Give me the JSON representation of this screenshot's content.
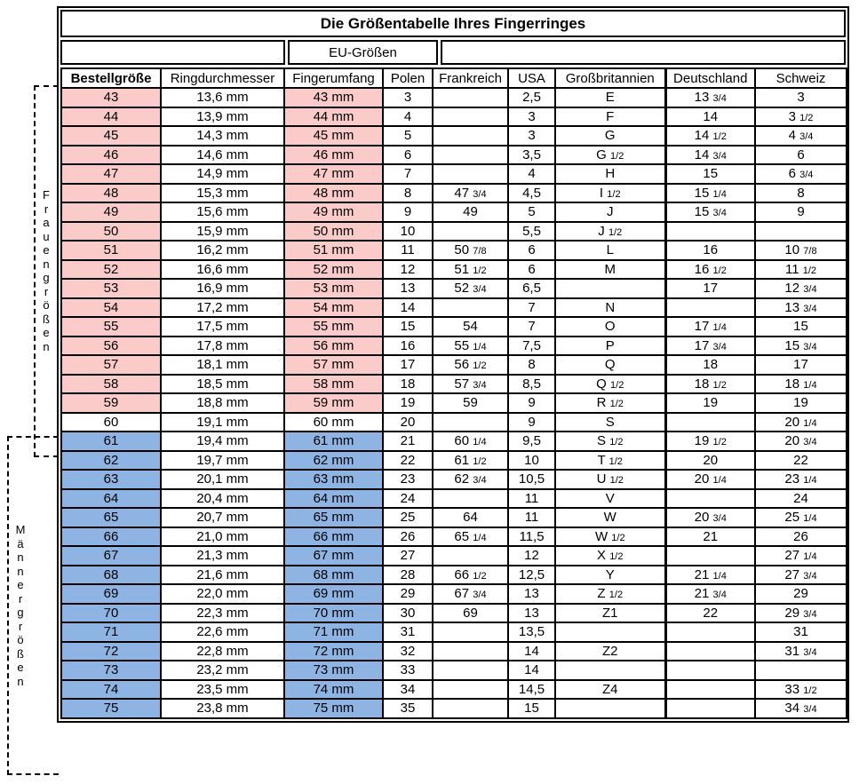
{
  "title": "Die Größentabelle Ihres Fingerringes",
  "header_group": {
    "eu_label": "EU-Größen"
  },
  "columns": [
    "Bestellgröße",
    "Ringdurchmesser",
    "Fingerumfang",
    "Polen",
    "Frankreich",
    "USA",
    "Großbritannien",
    "Deutschland",
    "Schweiz"
  ],
  "side_labels": {
    "women": "Frauengrößen",
    "men": "Männergrößen"
  },
  "colors": {
    "women_highlight": "#facbc8",
    "men_highlight": "#8db4e2",
    "border": "#000000"
  },
  "rows": [
    {
      "group": "women",
      "cells": [
        "43",
        "13,6 mm",
        "43 mm",
        "3",
        "",
        "2,5",
        "E",
        "13 3/4",
        "3"
      ]
    },
    {
      "group": "women",
      "cells": [
        "44",
        "13,9 mm",
        "44 mm",
        "4",
        "",
        "3",
        "F",
        "14",
        "3 1/2"
      ]
    },
    {
      "group": "women",
      "cells": [
        "45",
        "14,3 mm",
        "45 mm",
        "5",
        "",
        "3",
        "G",
        "14 1/2",
        "4 3/4"
      ]
    },
    {
      "group": "women",
      "cells": [
        "46",
        "14,6 mm",
        "46 mm",
        "6",
        "",
        "3,5",
        "G 1/2",
        "14 3/4",
        "6"
      ]
    },
    {
      "group": "women",
      "cells": [
        "47",
        "14,9 mm",
        "47 mm",
        "7",
        "",
        "4",
        "H",
        "15",
        "6 3/4"
      ]
    },
    {
      "group": "women",
      "cells": [
        "48",
        "15,3 mm",
        "48 mm",
        "8",
        "47 3/4",
        "4,5",
        "I 1/2",
        "15 1/4",
        "8"
      ]
    },
    {
      "group": "women",
      "cells": [
        "49",
        "15,6 mm",
        "49 mm",
        "9",
        "49",
        "5",
        "J",
        "15 3/4",
        "9"
      ]
    },
    {
      "group": "women",
      "cells": [
        "50",
        "15,9 mm",
        "50 mm",
        "10",
        "",
        "5,5",
        "J 1/2",
        "",
        ""
      ]
    },
    {
      "group": "women",
      "cells": [
        "51",
        "16,2 mm",
        "51 mm",
        "11",
        "50 7/8",
        "6",
        "L",
        "16",
        "10 7/8"
      ]
    },
    {
      "group": "women",
      "cells": [
        "52",
        "16,6 mm",
        "52 mm",
        "12",
        "51 1/2",
        "6",
        "M",
        "16 1/2",
        "11 1/2"
      ]
    },
    {
      "group": "women",
      "cells": [
        "53",
        "16,9 mm",
        "53 mm",
        "13",
        "52 3/4",
        "6,5",
        "",
        "17",
        "12 3/4"
      ]
    },
    {
      "group": "women",
      "cells": [
        "54",
        "17,2 mm",
        "54 mm",
        "14",
        "",
        "7",
        "N",
        "",
        "13 3/4"
      ]
    },
    {
      "group": "women",
      "cells": [
        "55",
        "17,5 mm",
        "55 mm",
        "15",
        "54",
        "7",
        "O",
        "17 1/4",
        "15"
      ]
    },
    {
      "group": "women",
      "cells": [
        "56",
        "17,8 mm",
        "56 mm",
        "16",
        "55 1/4",
        "7,5",
        "P",
        "17 3/4",
        "15 3/4"
      ]
    },
    {
      "group": "women",
      "cells": [
        "57",
        "18,1 mm",
        "57 mm",
        "17",
        "56 1/2",
        "8",
        "Q",
        "18",
        "17"
      ]
    },
    {
      "group": "women",
      "cells": [
        "58",
        "18,5 mm",
        "58 mm",
        "18",
        "57 3/4",
        "8,5",
        "Q 1/2",
        "18 1/2",
        "18 1/4"
      ]
    },
    {
      "group": "women",
      "cells": [
        "59",
        "18,8 mm",
        "59 mm",
        "19",
        "59",
        "9",
        "R 1/2",
        "19",
        "19"
      ]
    },
    {
      "group": "neutral",
      "cells": [
        "60",
        "19,1 mm",
        "60 mm",
        "20",
        "",
        "9",
        "S",
        "",
        "20 1/4"
      ]
    },
    {
      "group": "men",
      "cells": [
        "61",
        "19,4 mm",
        "61 mm",
        "21",
        "60 1/4",
        "9,5",
        "S 1/2",
        "19 1/2",
        "20 3/4"
      ]
    },
    {
      "group": "men",
      "cells": [
        "62",
        "19,7 mm",
        "62 mm",
        "22",
        "61 1/2",
        "10",
        "T 1/2",
        "20",
        "22"
      ]
    },
    {
      "group": "men",
      "cells": [
        "63",
        "20,1 mm",
        "63 mm",
        "23",
        "62 3/4",
        "10,5",
        "U 1/2",
        "20 1/4",
        "23 1/4"
      ]
    },
    {
      "group": "men",
      "cells": [
        "64",
        "20,4 mm",
        "64 mm",
        "24",
        "",
        "11",
        "V",
        "",
        "24"
      ]
    },
    {
      "group": "men",
      "cells": [
        "65",
        "20,7 mm",
        "65 mm",
        "25",
        "64",
        "11",
        "W",
        "20 3/4",
        "25 1/4"
      ]
    },
    {
      "group": "men",
      "cells": [
        "66",
        "21,0 mm",
        "66 mm",
        "26",
        "65 1/4",
        "11,5",
        "W 1/2",
        "21",
        "26"
      ]
    },
    {
      "group": "men",
      "cells": [
        "67",
        "21,3 mm",
        "67 mm",
        "27",
        "",
        "12",
        "X 1/2",
        "",
        "27 1/4"
      ]
    },
    {
      "group": "men",
      "cells": [
        "68",
        "21,6 mm",
        "68 mm",
        "28",
        "66 1/2",
        "12,5",
        "Y",
        "21 1/4",
        "27 3/4"
      ]
    },
    {
      "group": "men",
      "cells": [
        "69",
        "22,0 mm",
        "69 mm",
        "29",
        "67 3/4",
        "13",
        "Z 1/2",
        "21 3/4",
        "29"
      ]
    },
    {
      "group": "men",
      "cells": [
        "70",
        "22,3 mm",
        "70 mm",
        "30",
        "69",
        "13",
        "Z1",
        "22",
        "29 3/4"
      ]
    },
    {
      "group": "men",
      "cells": [
        "71",
        "22,6 mm",
        "71 mm",
        "31",
        "",
        "13,5",
        "",
        "",
        "31"
      ]
    },
    {
      "group": "men",
      "cells": [
        "72",
        "22,8 mm",
        "72 mm",
        "32",
        "",
        "14",
        "Z2",
        "",
        "31 3/4"
      ]
    },
    {
      "group": "men",
      "cells": [
        "73",
        "23,2 mm",
        "73 mm",
        "33",
        "",
        "14",
        "",
        "",
        ""
      ]
    },
    {
      "group": "men",
      "cells": [
        "74",
        "23,5 mm",
        "74 mm",
        "34",
        "",
        "14,5",
        "Z4",
        "",
        "33 1/2"
      ]
    },
    {
      "group": "men",
      "cells": [
        "75",
        "23,8 mm",
        "75 mm",
        "35",
        "",
        "15",
        "",
        "",
        "34 3/4"
      ]
    }
  ]
}
